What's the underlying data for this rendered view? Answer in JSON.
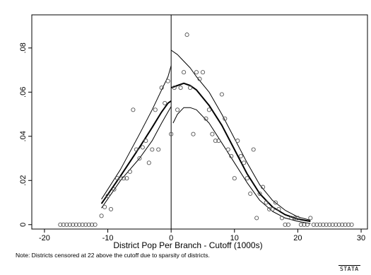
{
  "chart_data": {
    "type": "scatter",
    "title": "",
    "xlabel": "District Pop Per Branch - Cutoff (1000s)",
    "ylabel": "",
    "xlim": [
      -22,
      31
    ],
    "ylim": [
      -0.002,
      0.095
    ],
    "xticks": [
      -20,
      -10,
      0,
      10,
      20,
      30
    ],
    "xtick_labels": [
      "-20",
      "-10",
      "0",
      "10",
      "20",
      "30"
    ],
    "yticks": [
      0,
      0.02,
      0.04,
      0.06,
      0.08
    ],
    "ytick_labels": [
      "0",
      ".02",
      ".04",
      ".06",
      ".08"
    ],
    "vline_x": 0,
    "grid": false,
    "points": [
      [
        -17.5,
        0
      ],
      [
        -17,
        0
      ],
      [
        -16.5,
        0
      ],
      [
        -16,
        0
      ],
      [
        -15.5,
        0
      ],
      [
        -15,
        0
      ],
      [
        -14.5,
        0
      ],
      [
        -14,
        0
      ],
      [
        -13.5,
        0
      ],
      [
        -13,
        0
      ],
      [
        -12.5,
        0
      ],
      [
        -12,
        0
      ],
      [
        -11,
        0.004
      ],
      [
        -10.5,
        0.008
      ],
      [
        -10,
        0.013
      ],
      [
        -9.5,
        0.007
      ],
      [
        -9,
        0.016
      ],
      [
        -8.5,
        0.021
      ],
      [
        -8,
        0.021
      ],
      [
        -7.5,
        0.021
      ],
      [
        -7,
        0.021
      ],
      [
        -6.5,
        0.024
      ],
      [
        -6,
        0.052
      ],
      [
        -5.5,
        0.034
      ],
      [
        -5,
        0.03
      ],
      [
        -4.5,
        0.035
      ],
      [
        -4,
        0.038
      ],
      [
        -3.5,
        0.028
      ],
      [
        -3,
        0.034
      ],
      [
        -2.5,
        0.052
      ],
      [
        -2,
        0.034
      ],
      [
        -1.5,
        0.062
      ],
      [
        -1,
        0.055
      ],
      [
        -0.5,
        0.065
      ],
      [
        0,
        0.041
      ],
      [
        0.5,
        0.062
      ],
      [
        1,
        0.052
      ],
      [
        1.5,
        0.062
      ],
      [
        2,
        0.069
      ],
      [
        2.5,
        0.086
      ],
      [
        3,
        0.062
      ],
      [
        3.5,
        0.041
      ],
      [
        4,
        0.069
      ],
      [
        4.5,
        0.066
      ],
      [
        5,
        0.069
      ],
      [
        5.5,
        0.048
      ],
      [
        6,
        0.052
      ],
      [
        6.5,
        0.041
      ],
      [
        7,
        0.038
      ],
      [
        7.5,
        0.038
      ],
      [
        8,
        0.059
      ],
      [
        8.5,
        0.048
      ],
      [
        9,
        0.034
      ],
      [
        9.5,
        0.031
      ],
      [
        10,
        0.021
      ],
      [
        10.5,
        0.038
      ],
      [
        11,
        0.031
      ],
      [
        11.5,
        0.028
      ],
      [
        12,
        0.021
      ],
      [
        12.5,
        0.014
      ],
      [
        13,
        0.034
      ],
      [
        13.5,
        0.003
      ],
      [
        14,
        0.014
      ],
      [
        14.5,
        0.017
      ],
      [
        15,
        0.01
      ],
      [
        15.5,
        0.007
      ],
      [
        16,
        0.007
      ],
      [
        16.5,
        0.01
      ],
      [
        17,
        0.007
      ],
      [
        17.5,
        0.003
      ],
      [
        18,
        0
      ],
      [
        18.5,
        0
      ],
      [
        19,
        0.003
      ],
      [
        19.5,
        0.003
      ],
      [
        20,
        0.003
      ],
      [
        20.5,
        0
      ],
      [
        21,
        0
      ],
      [
        21.5,
        0
      ],
      [
        22,
        0.003
      ],
      [
        22.5,
        0
      ],
      [
        23,
        0
      ],
      [
        23.5,
        0
      ],
      [
        24,
        0
      ],
      [
        24.5,
        0
      ],
      [
        25,
        0
      ],
      [
        25.5,
        0
      ],
      [
        26,
        0
      ],
      [
        26.5,
        0
      ],
      [
        27,
        0
      ],
      [
        27.5,
        0
      ],
      [
        28,
        0
      ],
      [
        28.5,
        0
      ]
    ],
    "series": [
      {
        "values": [
          [
            -11,
            0.0075
          ],
          [
            -8,
            0.02
          ],
          [
            -5,
            0.03
          ],
          [
            -3,
            0.038
          ],
          [
            -1.5,
            0.046
          ],
          [
            -0.5,
            0.051
          ],
          [
            0,
            0.0535
          ]
        ]
      },
      {
        "values": [
          [
            -11,
            0.0095
          ],
          [
            -8,
            0.022
          ],
          [
            -5,
            0.035
          ],
          [
            -3,
            0.044
          ],
          [
            -1.5,
            0.051
          ],
          [
            -0.5,
            0.055
          ],
          [
            0,
            0.056
          ]
        ]
      },
      {
        "values": [
          [
            -11,
            0.0115
          ],
          [
            -8,
            0.025
          ],
          [
            -5,
            0.041
          ],
          [
            -3,
            0.052
          ],
          [
            -1.5,
            0.061
          ],
          [
            -0.5,
            0.067
          ],
          [
            0,
            0.072
          ]
        ]
      },
      {
        "values": [
          [
            0.3,
            0.046
          ],
          [
            1,
            0.05
          ],
          [
            2,
            0.053
          ],
          [
            3,
            0.053
          ],
          [
            4,
            0.052
          ],
          [
            6,
            0.046
          ],
          [
            8,
            0.037
          ],
          [
            10,
            0.028
          ],
          [
            12,
            0.019
          ],
          [
            14,
            0.011
          ],
          [
            16,
            0.006
          ],
          [
            18,
            0.003
          ],
          [
            20,
            0.0015
          ],
          [
            22,
            0.0005
          ]
        ]
      },
      {
        "values": [
          [
            0,
            0.062
          ],
          [
            1,
            0.063
          ],
          [
            2,
            0.064
          ],
          [
            3,
            0.063
          ],
          [
            4,
            0.061
          ],
          [
            6,
            0.054
          ],
          [
            8,
            0.045
          ],
          [
            10,
            0.034
          ],
          [
            12,
            0.023
          ],
          [
            14,
            0.014
          ],
          [
            16,
            0.008
          ],
          [
            18,
            0.0045
          ],
          [
            20,
            0.0025
          ],
          [
            22,
            0.0015
          ]
        ]
      },
      {
        "values": [
          [
            0,
            0.079
          ],
          [
            1,
            0.077
          ],
          [
            2,
            0.074
          ],
          [
            3,
            0.071
          ],
          [
            4,
            0.067
          ],
          [
            6,
            0.06
          ],
          [
            8,
            0.05
          ],
          [
            10,
            0.039
          ],
          [
            12,
            0.028
          ],
          [
            14,
            0.018
          ],
          [
            16,
            0.011
          ],
          [
            18,
            0.0065
          ],
          [
            20,
            0.0035
          ],
          [
            22,
            0.002
          ]
        ]
      }
    ]
  },
  "note": "Note: Districts censored at 22 above the cutoff due to sparsity of districts.",
  "logo_text": "STATA"
}
